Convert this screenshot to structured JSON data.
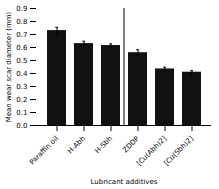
{
  "chart_data": {
    "type": "bar",
    "categories": [
      "Paraffin oil",
      "H-Abh",
      "H-Sbh",
      "ZDDP",
      "[Cu(Abh)2]",
      "[Cu(Sbh)2]"
    ],
    "values": [
      0.73,
      0.63,
      0.615,
      0.56,
      0.435,
      0.41
    ],
    "errors": [
      0.025,
      0.018,
      0.013,
      0.023,
      0.013,
      0.012
    ],
    "color": "#111111",
    "xlabel": "Lubricant additives",
    "ylabel": "Mean wear scar diameter (mm)",
    "ylim": [
      0.0,
      0.9
    ],
    "yticks": [
      {
        "value": 0,
        "label": "0.0"
      },
      0.1,
      0.2,
      0.3,
      0.4,
      0.5,
      0.6,
      0.7,
      0.8,
      0.9
    ],
    "grid": false
  }
}
